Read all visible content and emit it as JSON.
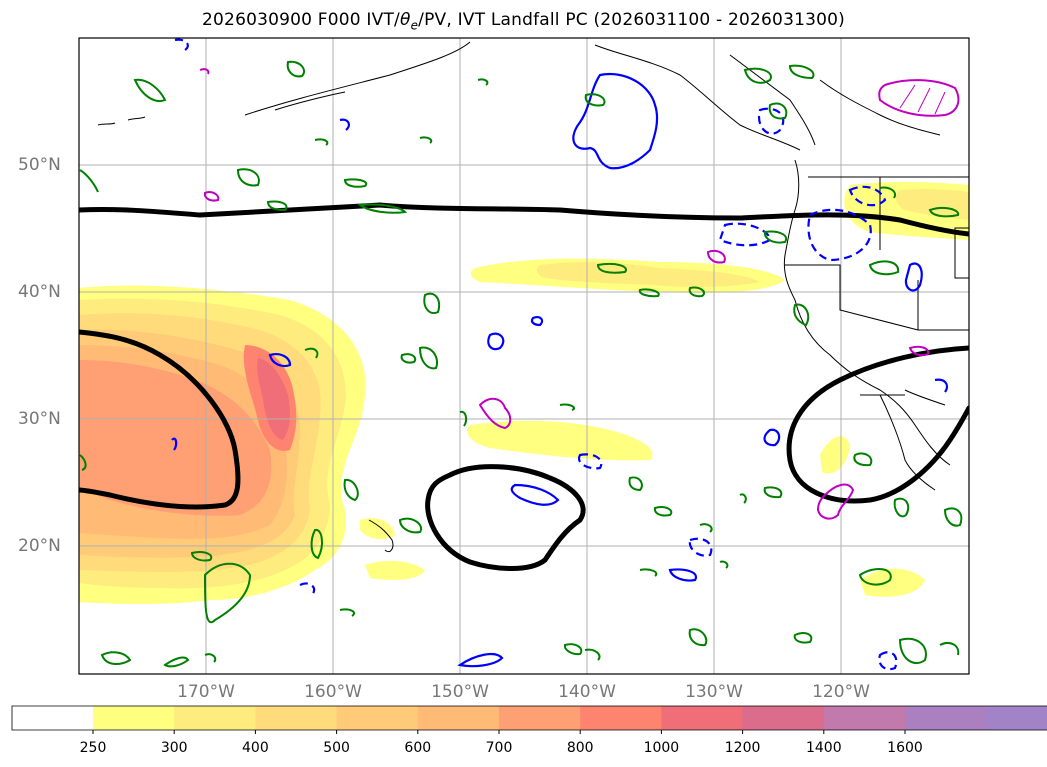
{
  "title": "2026030900 F000 IVT/θe/PV, IVT Landfall PC (2026031100 - 2026031300)",
  "title_parts": {
    "prefix": "2026030900 F000 IVT/",
    "theta": "θ",
    "sub": "e",
    "suffix": "/PV, IVT Landfall PC (2026031100 - 2026031300)"
  },
  "map": {
    "lat_labels": [
      "50°N",
      "40°N",
      "30°N",
      "20°N"
    ],
    "lon_labels": [
      "170°W",
      "160°W",
      "150°W",
      "140°W",
      "130°W",
      "120°W"
    ],
    "lat_values": [
      50,
      40,
      30,
      20
    ],
    "lon_values": [
      -170,
      -160,
      -150,
      -140,
      -130,
      -120
    ]
  },
  "colorbar": {
    "levels": [
      "250",
      "300",
      "400",
      "500",
      "600",
      "700",
      "800",
      "1000",
      "1200",
      "1400",
      "1600"
    ],
    "colors": [
      "#ffff80",
      "#ffec7e",
      "#ffdb7b",
      "#ffcb78",
      "#ffbb76",
      "#ff9f74",
      "#ff8470",
      "#f06e78",
      "#dc6c8c",
      "#c27aac",
      "#ab80c0",
      "#a283c8"
    ]
  },
  "styles": {
    "grid_color": "#b0b0b0",
    "tick_color": "#777777",
    "theta_e_contour": "#000000",
    "pv_contour": "#008000",
    "ivt_pc_contour": "#0000ff",
    "magenta_contour": "#c000c0"
  }
}
